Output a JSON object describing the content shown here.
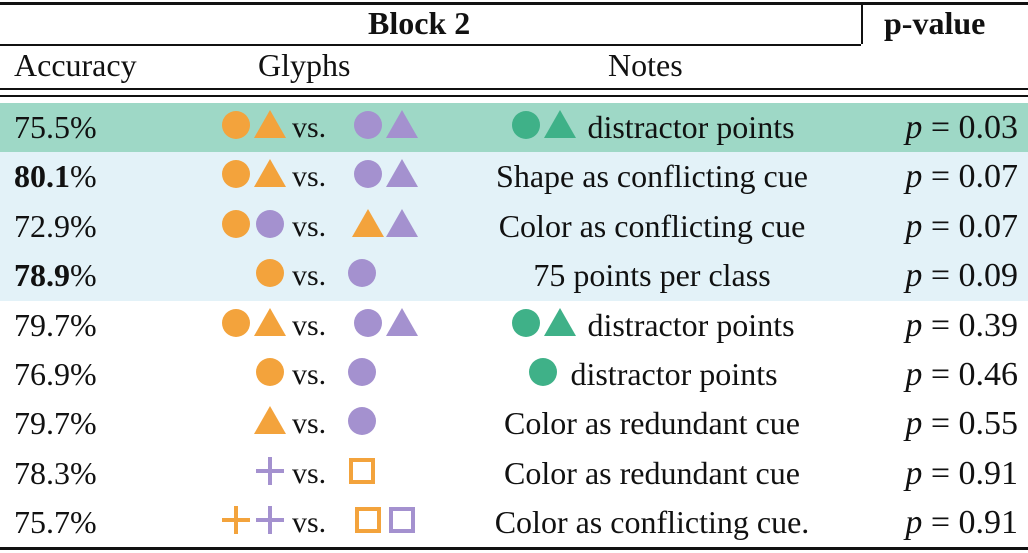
{
  "header": {
    "group_title": "Block 2",
    "pvalue_title": "p-value",
    "col_accuracy": "Accuracy",
    "col_glyphs": "Glyphs",
    "col_notes": "Notes"
  },
  "vs_label": "vs.",
  "p_symbol": "p",
  "colors": {
    "orange": "#f3a33c",
    "purple": "#a491cf",
    "green": "#3fb188",
    "highlight_green": "#9ed8c6",
    "highlight_blue": "#e3f2f8"
  },
  "rows": [
    {
      "accuracy": "75.5%",
      "bold": false,
      "left": [
        [
          "circle",
          "orange"
        ],
        [
          "triangle",
          "orange"
        ]
      ],
      "right": [
        [
          "circle",
          "purple"
        ],
        [
          "triangle",
          "purple"
        ]
      ],
      "note_glyphs": [
        [
          "circle",
          "green"
        ],
        [
          "triangle",
          "green"
        ]
      ],
      "note": "distractor points",
      "pvalue": "0.03",
      "bg": "highlight_green"
    },
    {
      "accuracy": "80.1%",
      "bold": true,
      "left": [
        [
          "circle",
          "orange"
        ],
        [
          "triangle",
          "orange"
        ]
      ],
      "right": [
        [
          "circle",
          "purple"
        ],
        [
          "triangle",
          "purple"
        ]
      ],
      "note_glyphs": [],
      "note": "Shape as conflicting cue",
      "pvalue": "0.07",
      "bg": "highlight_blue"
    },
    {
      "accuracy": "72.9%",
      "bold": false,
      "left": [
        [
          "circle",
          "orange"
        ],
        [
          "circle",
          "purple"
        ]
      ],
      "right": [
        [
          "triangle",
          "orange"
        ],
        [
          "triangle",
          "purple"
        ]
      ],
      "note_glyphs": [],
      "note": "Color as conflicting cue",
      "pvalue": "0.07",
      "bg": "highlight_blue"
    },
    {
      "accuracy": "78.9%",
      "bold": true,
      "left": [
        [
          "circle",
          "orange"
        ]
      ],
      "right": [
        [
          "circle",
          "purple"
        ]
      ],
      "note_glyphs": [],
      "note": "75 points per class",
      "pvalue": "0.09",
      "bg": "highlight_blue"
    },
    {
      "accuracy": "79.7%",
      "bold": false,
      "left": [
        [
          "circle",
          "orange"
        ],
        [
          "triangle",
          "orange"
        ]
      ],
      "right": [
        [
          "circle",
          "purple"
        ],
        [
          "triangle",
          "purple"
        ]
      ],
      "note_glyphs": [
        [
          "circle",
          "green"
        ],
        [
          "triangle",
          "green"
        ]
      ],
      "note": "distractor points",
      "pvalue": "0.39",
      "bg": "none"
    },
    {
      "accuracy": "76.9%",
      "bold": false,
      "left": [
        [
          "circle",
          "orange"
        ]
      ],
      "right": [
        [
          "circle",
          "purple"
        ]
      ],
      "note_glyphs": [
        [
          "circle",
          "green"
        ]
      ],
      "note": "distractor points",
      "pvalue": "0.46",
      "bg": "none"
    },
    {
      "accuracy": "79.7%",
      "bold": false,
      "left": [
        [
          "triangle",
          "orange"
        ]
      ],
      "right": [
        [
          "circle",
          "purple"
        ]
      ],
      "note_glyphs": [],
      "note": "Color as redundant cue",
      "pvalue": "0.55",
      "bg": "none"
    },
    {
      "accuracy": "78.3%",
      "bold": false,
      "left": [
        [
          "plus",
          "purple"
        ]
      ],
      "right": [
        [
          "square",
          "orange"
        ]
      ],
      "note_glyphs": [],
      "note": "Color as redundant cue",
      "pvalue": "0.91",
      "bg": "none"
    },
    {
      "accuracy": "75.7%",
      "bold": false,
      "left": [
        [
          "plus",
          "orange"
        ],
        [
          "plus",
          "purple"
        ]
      ],
      "right": [
        [
          "square",
          "orange"
        ],
        [
          "square",
          "purple"
        ]
      ],
      "note_glyphs": [],
      "note": "Color as conflicting cue.",
      "pvalue": "0.91",
      "bg": "none"
    }
  ]
}
